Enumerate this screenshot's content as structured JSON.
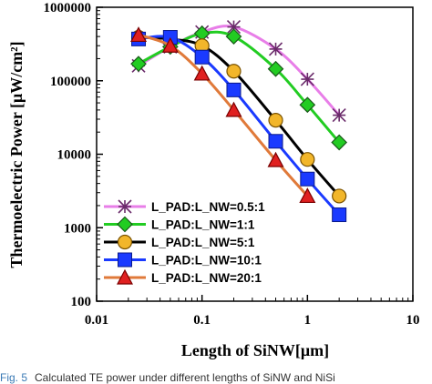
{
  "chart_data": {
    "type": "line",
    "xscale": "log",
    "yscale": "log",
    "xlim": [
      0.01,
      10
    ],
    "ylim": [
      100,
      1000000
    ],
    "xlabel": "Length of SiNW[μm]",
    "ylabel": "Thermoelectric Power [μW/cm²]",
    "x_ticks": [
      "0.01",
      "0.1",
      "1",
      "10"
    ],
    "y_ticks": [
      "100",
      "1000",
      "10000",
      "100000",
      "1000000"
    ],
    "grid": false,
    "legend_position": "lower-left",
    "series": [
      {
        "name": "L_PAD:L_NW=0.5:1",
        "color": "#e87ee8",
        "marker": "asterisk",
        "x": [
          0.025,
          0.05,
          0.1,
          0.2,
          0.5,
          1,
          2
        ],
        "y": [
          160000,
          290000,
          460000,
          540000,
          270000,
          105000,
          34000
        ]
      },
      {
        "name": "L_PAD:L_NW=1:1",
        "color": "#22cc22",
        "marker": "diamond",
        "x": [
          0.025,
          0.05,
          0.1,
          0.2,
          0.5,
          1,
          2
        ],
        "y": [
          170000,
          290000,
          440000,
          400000,
          145000,
          47000,
          14500
        ]
      },
      {
        "name": "L_PAD:L_NW=5:1",
        "color": "#000000",
        "marker": "circle",
        "x": [
          0.025,
          0.05,
          0.1,
          0.2,
          0.5,
          1,
          2
        ],
        "y": [
          390000,
          370000,
          300000,
          135000,
          29000,
          8500,
          2700
        ]
      },
      {
        "name": "L_PAD:L_NW=10:1",
        "color": "#1a3aff",
        "marker": "square",
        "x": [
          0.025,
          0.05,
          0.1,
          0.2,
          0.5,
          1,
          2
        ],
        "y": [
          370000,
          390000,
          210000,
          75000,
          15000,
          4600,
          1500
        ]
      },
      {
        "name": "L_PAD:L_NW=20:1",
        "color": "#e07a3a",
        "marker": "triangle",
        "x": [
          0.025,
          0.05,
          0.1,
          0.2,
          0.5,
          1
        ],
        "y": [
          420000,
          300000,
          125000,
          40000,
          8300,
          2700
        ]
      }
    ]
  },
  "caption": {
    "label": "Fig. 5",
    "text": "Calculated TE power under different lengths of SiNW and NiSi"
  },
  "colors": {
    "axis": "#000000",
    "background": "#ffffff"
  }
}
